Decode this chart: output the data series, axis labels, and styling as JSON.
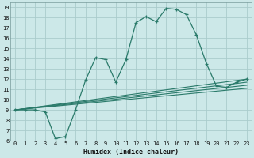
{
  "xlabel": "Humidex (Indice chaleur)",
  "bg_color": "#cce8e8",
  "grid_color": "#aacccc",
  "line_color": "#2a7a6a",
  "xlim": [
    -0.5,
    23.5
  ],
  "ylim": [
    6,
    19.5
  ],
  "xticks": [
    0,
    1,
    2,
    3,
    4,
    5,
    6,
    7,
    8,
    9,
    10,
    11,
    12,
    13,
    14,
    15,
    16,
    17,
    18,
    19,
    20,
    21,
    22,
    23
  ],
  "yticks": [
    6,
    7,
    8,
    9,
    10,
    11,
    12,
    13,
    14,
    15,
    16,
    17,
    18,
    19
  ],
  "main_line_x": [
    0,
    1,
    2,
    3,
    4,
    5,
    6,
    7,
    8,
    9,
    10,
    11,
    12,
    13,
    14,
    15,
    16,
    17,
    18,
    19,
    20,
    21,
    22,
    23
  ],
  "main_line_y": [
    9.0,
    9.0,
    9.0,
    8.8,
    6.2,
    6.4,
    9.0,
    11.9,
    14.1,
    13.9,
    11.7,
    13.9,
    17.5,
    18.1,
    17.6,
    18.9,
    18.8,
    18.3,
    16.3,
    13.5,
    11.3,
    11.2,
    11.7,
    12.0
  ],
  "line2_x": [
    0,
    23
  ],
  "line2_y": [
    9.0,
    11.7
  ],
  "line3_x": [
    0,
    23
  ],
  "line3_y": [
    9.0,
    12.0
  ],
  "line4_x": [
    0,
    23
  ],
  "line4_y": [
    9.0,
    11.4
  ],
  "line5_x": [
    0,
    23
  ],
  "line5_y": [
    9.0,
    11.1
  ]
}
